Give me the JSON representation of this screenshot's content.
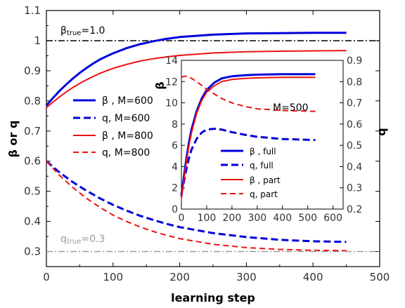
{
  "chart_data": [
    {
      "type": "line",
      "xlabel": "learning step",
      "ylabel": "β or q",
      "xlim": [
        0,
        500
      ],
      "ylim": [
        0.25,
        1.1
      ],
      "xticks": [
        0,
        100,
        200,
        300,
        400,
        500
      ],
      "yticks": [
        0.3,
        0.4,
        0.5,
        0.6,
        0.7,
        0.8,
        0.9,
        1,
        1.1
      ],
      "grid": false,
      "legend_position": "center-left",
      "series": [
        {
          "name": "β , M=600",
          "style": "solid",
          "color": "#0000dd",
          "x": [
            0,
            10,
            20,
            30,
            40,
            50,
            60,
            70,
            80,
            90,
            100,
            120,
            140,
            160,
            180,
            200,
            250,
            300,
            350,
            400,
            450
          ],
          "y": [
            0.785,
            0.81,
            0.834,
            0.855,
            0.875,
            0.893,
            0.909,
            0.924,
            0.937,
            0.948,
            0.958,
            0.975,
            0.988,
            0.998,
            1.006,
            1.012,
            1.02,
            1.024,
            1.025,
            1.026,
            1.026
          ]
        },
        {
          "name": "q, M=600",
          "style": "dashed",
          "color": "#0000dd",
          "x": [
            0,
            20,
            40,
            60,
            80,
            100,
            120,
            140,
            160,
            180,
            200,
            250,
            300,
            350,
            400,
            450
          ],
          "y": [
            0.6,
            0.562,
            0.53,
            0.502,
            0.477,
            0.455,
            0.436,
            0.419,
            0.405,
            0.392,
            0.381,
            0.361,
            0.348,
            0.339,
            0.334,
            0.332
          ]
        },
        {
          "name": "β , M=800",
          "style": "solid",
          "color": "#ee1111",
          "x": [
            0,
            10,
            20,
            30,
            40,
            50,
            60,
            70,
            80,
            90,
            100,
            120,
            140,
            160,
            180,
            200,
            250,
            300,
            350,
            400,
            450
          ],
          "y": [
            0.778,
            0.796,
            0.814,
            0.83,
            0.845,
            0.858,
            0.87,
            0.881,
            0.891,
            0.9,
            0.908,
            0.921,
            0.932,
            0.94,
            0.946,
            0.951,
            0.959,
            0.963,
            0.965,
            0.966,
            0.967
          ]
        },
        {
          "name": "q, M=800",
          "style": "dashed",
          "color": "#ee1111",
          "x": [
            0,
            20,
            40,
            60,
            80,
            100,
            120,
            140,
            160,
            180,
            200,
            250,
            300,
            350,
            400,
            450
          ],
          "y": [
            0.6,
            0.552,
            0.512,
            0.477,
            0.447,
            0.421,
            0.4,
            0.382,
            0.367,
            0.354,
            0.343,
            0.324,
            0.313,
            0.307,
            0.304,
            0.303
          ]
        }
      ],
      "reference_lines": [
        {
          "label": "β_true=1.0",
          "y": 1.0,
          "color": "#000000",
          "style": "dashdot"
        },
        {
          "label": "q_true=0.3",
          "y": 0.3,
          "color": "#9a9a9a",
          "style": "dashdot"
        }
      ]
    },
    {
      "type": "line",
      "annotation": "M=500",
      "ylabel_left": "β",
      "ylabel_right": "q",
      "xlim": [
        0,
        640
      ],
      "ylim_left": [
        0,
        14
      ],
      "ylim_right": [
        0.2,
        0.9
      ],
      "xticks": [
        0,
        100,
        200,
        300,
        400,
        500,
        600
      ],
      "yticks_left": [
        0,
        2,
        4,
        6,
        8,
        10,
        12,
        14
      ],
      "yticks_right": [
        0.2,
        0.3,
        0.4,
        0.5,
        0.6,
        0.7,
        0.8,
        0.9
      ],
      "legend_position": "bottom-left",
      "series": [
        {
          "name": "β , full",
          "axis": "left",
          "style": "solid",
          "color": "#0000dd",
          "x": [
            0,
            10,
            20,
            30,
            40,
            60,
            80,
            100,
            130,
            160,
            200,
            250,
            300,
            400,
            530
          ],
          "y": [
            1.2,
            3.1,
            4.8,
            6.3,
            7.5,
            9.2,
            10.4,
            11.2,
            11.9,
            12.3,
            12.5,
            12.6,
            12.65,
            12.7,
            12.7
          ]
        },
        {
          "name": "q, full",
          "axis": "right",
          "style": "dashed",
          "color": "#0000dd",
          "x": [
            0,
            10,
            20,
            30,
            40,
            60,
            80,
            100,
            130,
            160,
            200,
            250,
            300,
            400,
            530
          ],
          "y": [
            0.27,
            0.33,
            0.39,
            0.44,
            0.48,
            0.53,
            0.56,
            0.574,
            0.578,
            0.574,
            0.562,
            0.55,
            0.54,
            0.53,
            0.525
          ]
        },
        {
          "name": "β , part",
          "axis": "left",
          "style": "solid",
          "color": "#ee1111",
          "x": [
            0,
            10,
            20,
            30,
            40,
            60,
            80,
            100,
            130,
            160,
            200,
            250,
            300,
            400,
            530
          ],
          "y": [
            1.0,
            2.8,
            4.5,
            6.0,
            7.2,
            9.0,
            10.2,
            11.0,
            11.6,
            12.0,
            12.2,
            12.3,
            12.35,
            12.4,
            12.4
          ]
        },
        {
          "name": "q, part",
          "axis": "right",
          "style": "dashed",
          "color": "#ee1111",
          "x": [
            0,
            10,
            20,
            30,
            40,
            60,
            80,
            100,
            130,
            160,
            200,
            250,
            300,
            400,
            530
          ],
          "y": [
            0.82,
            0.825,
            0.825,
            0.822,
            0.815,
            0.8,
            0.782,
            0.765,
            0.742,
            0.72,
            0.7,
            0.683,
            0.672,
            0.664,
            0.66
          ]
        }
      ]
    }
  ]
}
